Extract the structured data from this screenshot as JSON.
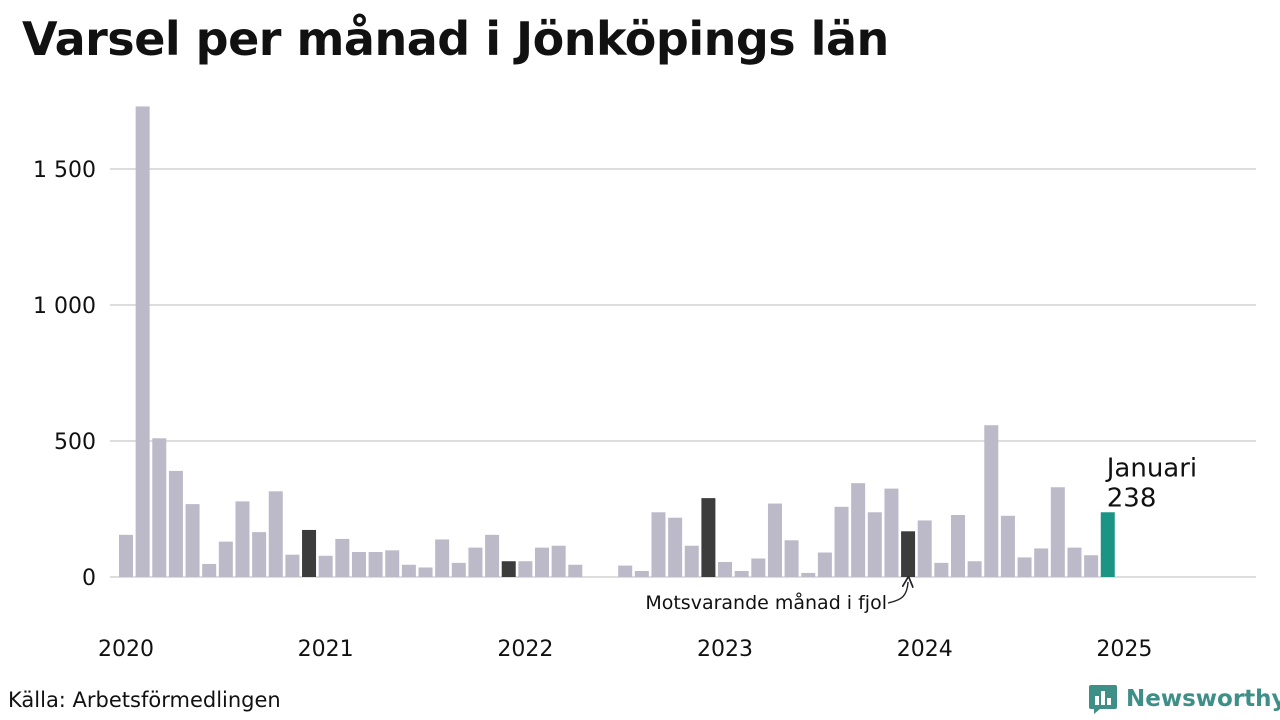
{
  "title": "Varsel per månad i Jönköpings län",
  "source": "Källa: Arbetsförmedlingen",
  "brand": {
    "name": "Newsworthy",
    "logo_icon": "newsworthy-logo-icon",
    "color": "#3d8f87"
  },
  "chart_data": {
    "type": "bar",
    "title": "Varsel per månad i Jönköpings län",
    "xlabel": "",
    "ylabel": "",
    "ylim": [
      0,
      1750
    ],
    "yticks": [
      {
        "value": 0,
        "label": "0"
      },
      {
        "value": 500,
        "label": "500"
      },
      {
        "value": 1000,
        "label": "1 000"
      },
      {
        "value": 1500,
        "label": "1 500"
      }
    ],
    "xticks": [
      "2020",
      "2021",
      "2022",
      "2023",
      "2024",
      "2025"
    ],
    "grid": true,
    "colors": {
      "default": "#bcbac9",
      "same_month": "#3c3c3c",
      "highlight": "#1a9485",
      "grid": "#dddddd"
    },
    "values": [
      155,
      1730,
      510,
      390,
      268,
      48,
      130,
      278,
      165,
      315,
      82,
      173,
      78,
      140,
      92,
      92,
      98,
      45,
      35,
      138,
      52,
      108,
      155,
      58,
      58,
      108,
      115,
      45,
      null,
      null,
      42,
      22,
      238,
      218,
      115,
      290,
      55,
      22,
      68,
      270,
      135,
      15,
      90,
      258,
      345,
      238,
      325,
      168,
      208,
      52,
      228,
      58,
      558,
      225,
      72,
      105,
      330,
      108,
      80,
      238
    ],
    "same_month_indices": [
      11,
      23,
      35,
      47
    ],
    "highlight": {
      "index": 59,
      "month": "Januari",
      "value": "238"
    },
    "annotation": "Motsvarande månad i fjol"
  }
}
